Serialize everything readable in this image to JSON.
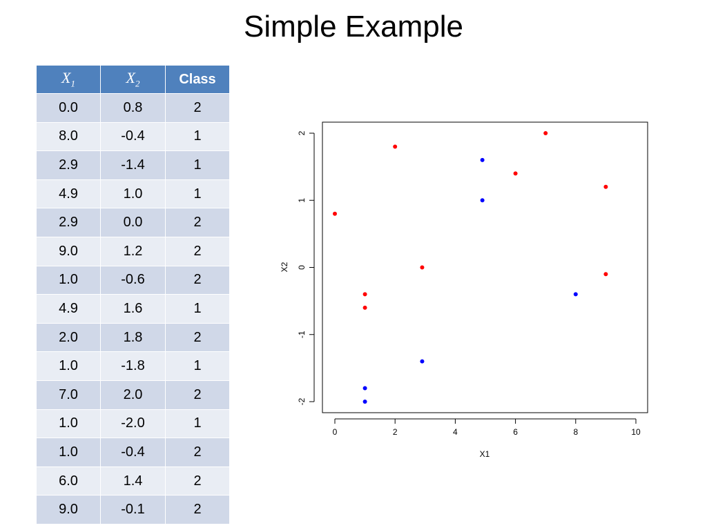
{
  "slide": {
    "title": "Simple Example"
  },
  "table": {
    "headers": [
      {
        "base": "X",
        "sub": "1"
      },
      {
        "base": "X",
        "sub": "2"
      },
      {
        "label": "Class"
      }
    ],
    "rows": [
      [
        "0.0",
        "0.8",
        "2"
      ],
      [
        "8.0",
        "-0.4",
        "1"
      ],
      [
        "2.9",
        "-1.4",
        "1"
      ],
      [
        "4.9",
        "1.0",
        "1"
      ],
      [
        "2.9",
        "0.0",
        "2"
      ],
      [
        "9.0",
        "1.2",
        "2"
      ],
      [
        "1.0",
        "-0.6",
        "2"
      ],
      [
        "4.9",
        "1.6",
        "1"
      ],
      [
        "2.0",
        "1.8",
        "2"
      ],
      [
        "1.0",
        "-1.8",
        "1"
      ],
      [
        "7.0",
        "2.0",
        "2"
      ],
      [
        "1.0",
        "-2.0",
        "1"
      ],
      [
        "1.0",
        "-0.4",
        "2"
      ],
      [
        "6.0",
        "1.4",
        "2"
      ],
      [
        "9.0",
        "-0.1",
        "2"
      ]
    ]
  },
  "chart_data": {
    "type": "scatter",
    "xlabel": "X1",
    "ylabel": "X2",
    "xlim": [
      0,
      10
    ],
    "ylim": [
      -2,
      2
    ],
    "xticks": [
      0,
      2,
      4,
      6,
      8,
      10
    ],
    "yticks": [
      -2,
      -1,
      0,
      1,
      2
    ],
    "grid": false,
    "class_colors": {
      "1": "#0000ff",
      "2": "#ff0000"
    },
    "points": [
      {
        "x": 0.0,
        "y": 0.8,
        "class": "2"
      },
      {
        "x": 8.0,
        "y": -0.4,
        "class": "1"
      },
      {
        "x": 2.9,
        "y": -1.4,
        "class": "1"
      },
      {
        "x": 4.9,
        "y": 1.0,
        "class": "1"
      },
      {
        "x": 2.9,
        "y": 0.0,
        "class": "2"
      },
      {
        "x": 9.0,
        "y": 1.2,
        "class": "2"
      },
      {
        "x": 1.0,
        "y": -0.6,
        "class": "2"
      },
      {
        "x": 4.9,
        "y": 1.6,
        "class": "1"
      },
      {
        "x": 2.0,
        "y": 1.8,
        "class": "2"
      },
      {
        "x": 1.0,
        "y": -1.8,
        "class": "1"
      },
      {
        "x": 7.0,
        "y": 2.0,
        "class": "2"
      },
      {
        "x": 1.0,
        "y": -2.0,
        "class": "1"
      },
      {
        "x": 1.0,
        "y": -0.4,
        "class": "2"
      },
      {
        "x": 6.0,
        "y": 1.4,
        "class": "2"
      },
      {
        "x": 9.0,
        "y": -0.1,
        "class": "2"
      }
    ]
  }
}
